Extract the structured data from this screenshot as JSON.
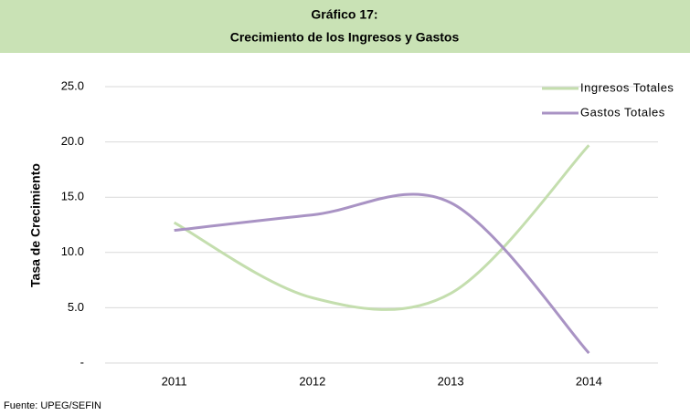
{
  "chart_data": {
    "type": "line",
    "title": "Gráfico 17:",
    "subtitle": "Crecimiento de los Ingresos y Gastos",
    "y_label": "Tasa de Crecimiento",
    "source": "Fuente: UPEG/SEFIN",
    "categories": [
      "2011",
      "2012",
      "2013",
      "2014"
    ],
    "series": [
      {
        "name": "Ingresos Totales",
        "color": "#c4deae",
        "values": [
          12.7,
          5.9,
          6.3,
          19.7
        ]
      },
      {
        "name": "Gastos Totales",
        "color": "#a993c4",
        "values": [
          12.0,
          13.4,
          14.5,
          0.9
        ]
      }
    ],
    "ylim": [
      0,
      25
    ],
    "yticks": [
      {
        "value": 0,
        "label": "-"
      },
      {
        "value": 5,
        "label": "5.0"
      },
      {
        "value": 10,
        "label": "10.0"
      },
      {
        "value": 15,
        "label": "15.0"
      },
      {
        "value": 20,
        "label": "20.0"
      },
      {
        "value": 25,
        "label": "25.0"
      }
    ],
    "grid": true,
    "smooth": true,
    "legend": "top-right"
  }
}
